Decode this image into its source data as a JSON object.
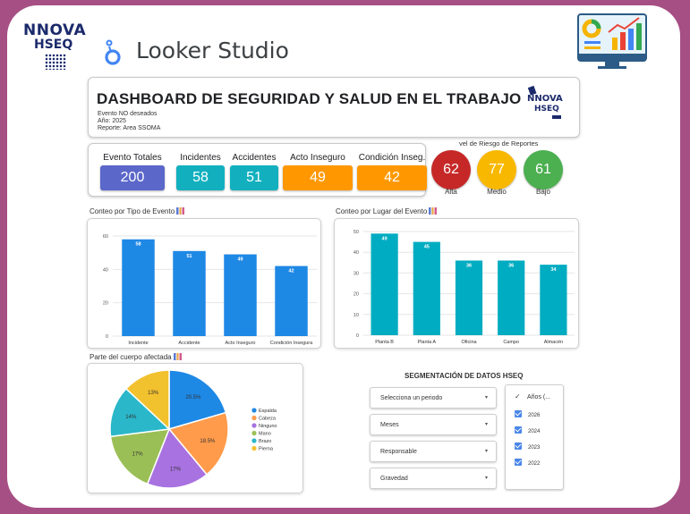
{
  "brand": {
    "line1": "NNOVA",
    "line2": "HSEQ"
  },
  "app": {
    "name": "Looker Studio"
  },
  "header": {
    "title": "DASHBOARD DE SEGURIDAD Y SALUD EN EL TRABAJO",
    "meta": [
      "Evento NO deseados",
      "Año: 2025",
      "Reporte: Area SSOMA"
    ],
    "logo_line1": "NNOVA",
    "logo_line2": "HSEQ"
  },
  "kpis": [
    {
      "label": "Evento Totales",
      "value": "200",
      "color": "#5b67c9"
    },
    {
      "label": "Incidentes",
      "value": "58",
      "color": "#12b0bf"
    },
    {
      "label": "Accidentes",
      "value": "51",
      "color": "#12b0bf"
    },
    {
      "label": "Acto Inseguro",
      "value": "49",
      "color": "#ff9800"
    },
    {
      "label": "Condición Inseg.",
      "value": "42",
      "color": "#ff9800"
    }
  ],
  "risk": {
    "title": "vel de Riesgo de Reportes",
    "items": [
      {
        "value": "62",
        "label": "Alta",
        "color": "#c62828"
      },
      {
        "value": "77",
        "label": "Medio",
        "color": "#f9b800"
      },
      {
        "value": "61",
        "label": "Bajo",
        "color": "#4caf50"
      }
    ]
  },
  "charts": {
    "tipo": {
      "title": "Conteo por Tipo de Evento",
      "type": "bar",
      "color": "#1e88e5",
      "categories": [
        "Incidente",
        "Accidente",
        "Acto Inseguro",
        "Condición Insegura"
      ],
      "values": [
        58,
        51,
        49,
        42
      ],
      "ylim": [
        0,
        60
      ],
      "yticks": [
        0,
        20,
        40,
        60
      ]
    },
    "lugar": {
      "title": "Conteo por Lugar del Evento",
      "type": "bar",
      "color": "#00acc1",
      "categories": [
        "Planta B",
        "Planta A",
        "Oficina",
        "Campo",
        "Almacén"
      ],
      "values": [
        49,
        45,
        36,
        36,
        34
      ],
      "ylim": [
        0,
        50
      ],
      "yticks": [
        0,
        10,
        20,
        30,
        40,
        50
      ]
    },
    "cuerpo": {
      "title": "Parte del cuerpo afectada",
      "type": "pie",
      "slices": [
        {
          "name": "Espalda",
          "value": 20.5,
          "label": "20.5%",
          "color": "#1e88e5"
        },
        {
          "name": "Cabeza",
          "value": 18.5,
          "label": "18.5%",
          "color": "#ff9b4a"
        },
        {
          "name": "Ninguno",
          "value": 17,
          "label": "17%",
          "color": "#a872e0"
        },
        {
          "name": "Mano",
          "value": 17,
          "label": "17%",
          "color": "#9bbf57"
        },
        {
          "name": "Brazo",
          "value": 14,
          "label": "14%",
          "color": "#2ab7c9"
        },
        {
          "name": "Pierna",
          "value": 13,
          "label": "13%",
          "color": "#f2c12e"
        }
      ]
    }
  },
  "segmentation": {
    "title": "SEGMENTACIÓN DE DATOS HSEQ",
    "dropdowns": [
      "Selecciona un periodo",
      "Meses",
      "Responsable",
      "Gravedad"
    ],
    "years_header": "Años (...",
    "years": [
      "2026",
      "2024",
      "2023",
      "2022"
    ]
  }
}
